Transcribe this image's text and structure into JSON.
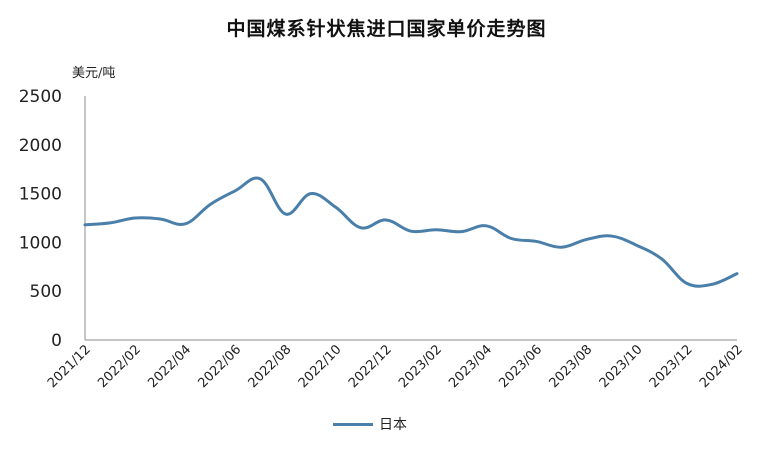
{
  "chart_data": {
    "type": "line",
    "title": "中国煤系针状焦进口国家单价走势图",
    "unit_label": "美元/吨",
    "ylim": [
      0,
      2500
    ],
    "y_ticks": [
      "0",
      "500",
      "1000",
      "1500",
      "2000",
      "2500"
    ],
    "x_tick_labels": [
      "2021/12",
      "2022/02",
      "2022/04",
      "2022/06",
      "2022/08",
      "2022/10",
      "2022/12",
      "2023/02",
      "2023/04",
      "2023/06",
      "2023/08",
      "2023/10",
      "2023/12",
      "2024/02"
    ],
    "months": [
      "2021/12",
      "2022/01",
      "2022/02",
      "2022/03",
      "2022/04",
      "2022/05",
      "2022/06",
      "2022/07",
      "2022/08",
      "2022/09",
      "2022/10",
      "2022/11",
      "2022/12",
      "2023/01",
      "2023/02",
      "2023/03",
      "2023/04",
      "2023/05",
      "2023/06",
      "2023/07",
      "2023/08",
      "2023/09",
      "2023/10",
      "2023/11",
      "2023/12",
      "2024/01",
      "2024/02"
    ],
    "series": [
      {
        "name": "日本",
        "color": "#4a7faa",
        "values": [
          1180,
          1200,
          1250,
          1240,
          1190,
          1390,
          1530,
          1650,
          1290,
          1500,
          1360,
          1150,
          1230,
          1115,
          1130,
          1110,
          1170,
          1040,
          1010,
          950,
          1030,
          1065,
          970,
          830,
          580,
          570,
          680
        ]
      }
    ],
    "legend_position": "bottom",
    "grid": false
  }
}
